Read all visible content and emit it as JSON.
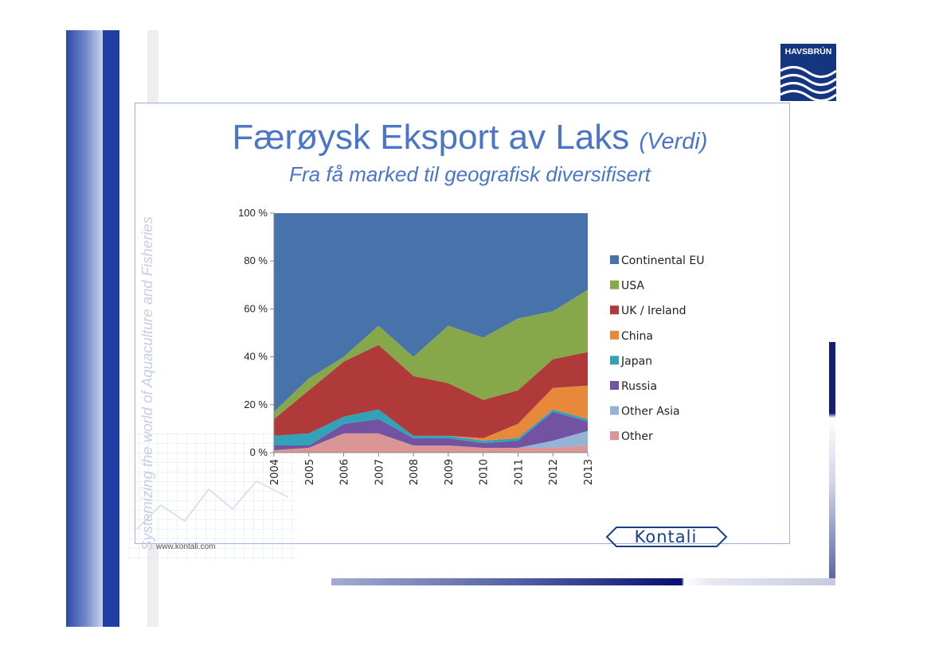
{
  "slide": {
    "title_main": "Færøysk Eksport av Laks",
    "title_suffix": "(Verdi)",
    "subtitle": "Fra få marked til geografisk diversifisert",
    "tagline": "Systemizing the world of Aquaculture and Fisheries",
    "url": "www.kontali.com"
  },
  "logos": {
    "havsbrun": "HAVSBRÚN",
    "kontali": "Kontali"
  },
  "colors": {
    "title": "#4a76c9",
    "havsbrun_bg": "#14357f"
  },
  "chart_data": {
    "type": "area",
    "stacked": true,
    "percent": true,
    "categories": [
      "2004",
      "2005",
      "2006",
      "2007",
      "2008",
      "2009",
      "2010",
      "2011",
      "2012",
      "2013"
    ],
    "ylim": [
      0,
      100
    ],
    "yticks": [
      "0 %",
      "20 %",
      "40 %",
      "60 %",
      "80 %",
      "100 %"
    ],
    "legend_position": "right",
    "series": [
      {
        "name": "Other",
        "color": "#d99694",
        "values": [
          1,
          2,
          8,
          8,
          3,
          3,
          2,
          2,
          2,
          3
        ]
      },
      {
        "name": "Other Asia",
        "color": "#95b3d7",
        "values": [
          0,
          0,
          0,
          0,
          0,
          0,
          0,
          0,
          3,
          6
        ]
      },
      {
        "name": "Russia",
        "color": "#7153a1",
        "values": [
          2,
          1,
          4,
          6,
          3,
          3,
          2,
          3,
          12,
          4
        ]
      },
      {
        "name": "Japan",
        "color": "#31a3b8",
        "values": [
          4,
          5,
          3,
          4,
          1,
          1,
          1,
          1,
          1,
          1
        ]
      },
      {
        "name": "China",
        "color": "#e8883a",
        "values": [
          0,
          0,
          0,
          0,
          0,
          0,
          1,
          6,
          9,
          14
        ]
      },
      {
        "name": "UK / Ireland",
        "color": "#b03a3a",
        "values": [
          7,
          18,
          23,
          27,
          25,
          22,
          16,
          14,
          12,
          14
        ]
      },
      {
        "name": "USA",
        "color": "#86a84a",
        "values": [
          3,
          5,
          2,
          8,
          8,
          24,
          26,
          30,
          20,
          26
        ]
      },
      {
        "name": "Continental EU",
        "color": "#4773aa",
        "values": [
          83,
          69,
          60,
          47,
          60,
          47,
          52,
          44,
          41,
          32
        ]
      }
    ]
  }
}
